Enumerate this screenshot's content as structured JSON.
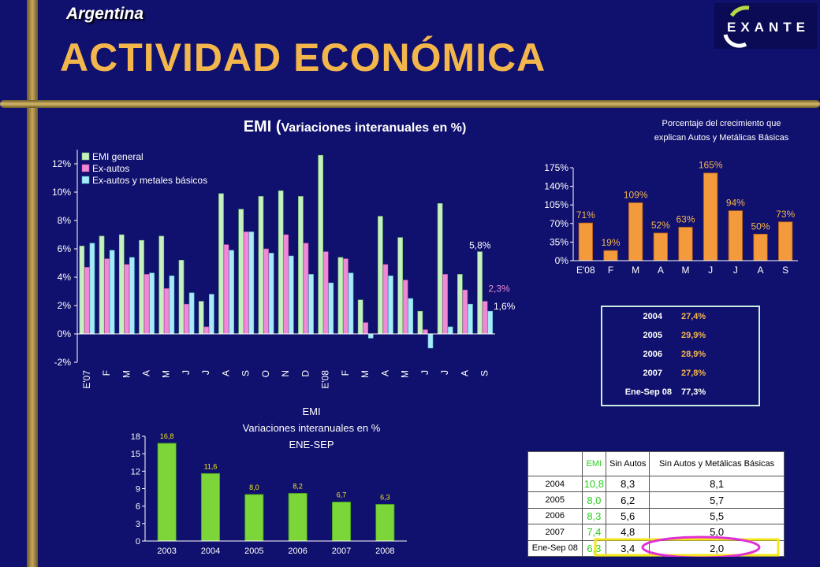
{
  "header": {
    "country": "Argentina",
    "title": "ACTIVIDAD ECONÓMICA",
    "logo_text": "EXANTE"
  },
  "colors": {
    "background": "#10106e",
    "gold": "#c7a55a",
    "title": "#f2b64c",
    "emi_general": "#c7f0c0",
    "ex_autos": "#f08ad8",
    "ex_autos_metales": "#a9eaf7",
    "orange_bar": "#f39a3c",
    "green_bar": "#7cd63a",
    "highlight": "#f4e619",
    "circle": "#e02fd6"
  },
  "emi_title": {
    "main": "EMI (",
    "sub": "Variaciones interanuales en %)"
  },
  "pct_title": {
    "line1": "Porcentaje del crecimiento que",
    "line2": "explican Autos y Metálicas Básicas"
  },
  "bottom_title": {
    "line1": "EMI",
    "line2": "Variaciones interanuales en %",
    "line3": "ENE-SEP"
  },
  "years_box": [
    {
      "year": "2004",
      "value": "27,4%"
    },
    {
      "year": "2005",
      "value": "29,9%"
    },
    {
      "year": "2006",
      "value": "28,9%"
    },
    {
      "year": "2007",
      "value": "27,8%"
    },
    {
      "year": "Ene-Sep 08",
      "value": "77,3%"
    }
  ],
  "emi_table": {
    "headers": [
      "EMI",
      "Sin Autos",
      "Sin Autos y Metálicas Básicas"
    ],
    "rows": [
      {
        "label": "2004",
        "emi": "10,8",
        "sin_autos": "8,3",
        "sin_autos_met": "8,1"
      },
      {
        "label": "2005",
        "emi": "8,0",
        "sin_autos": "6,2",
        "sin_autos_met": "5,7"
      },
      {
        "label": "2006",
        "emi": "8,3",
        "sin_autos": "5,6",
        "sin_autos_met": "5,5"
      },
      {
        "label": "2007",
        "emi": "7,4",
        "sin_autos": "4,8",
        "sin_autos_met": "5,0"
      },
      {
        "label": "Ene-Sep 08",
        "emi": "6,3",
        "sin_autos": "3,4",
        "sin_autos_met": "2,0"
      }
    ]
  },
  "chart_data": [
    {
      "type": "bar",
      "categories": [
        "E'07",
        "F",
        "M",
        "A",
        "M",
        "J",
        "J",
        "A",
        "S",
        "O",
        "N",
        "D",
        "E'08",
        "F",
        "M",
        "A",
        "M",
        "J",
        "J",
        "A",
        "S"
      ],
      "series": [
        {
          "name": "EMI general",
          "values": [
            6.2,
            6.9,
            7.0,
            6.6,
            6.9,
            5.2,
            2.3,
            9.9,
            8.8,
            9.7,
            10.1,
            9.7,
            12.6,
            5.4,
            2.4,
            8.3,
            6.8,
            1.6,
            9.2,
            4.2,
            5.8
          ]
        },
        {
          "name": "Ex-autos",
          "values": [
            4.7,
            5.3,
            4.9,
            4.2,
            3.2,
            2.1,
            0.5,
            6.3,
            7.2,
            6.0,
            7.0,
            6.4,
            5.8,
            5.3,
            0.8,
            4.9,
            3.8,
            0.3,
            4.2,
            3.1,
            2.3
          ]
        },
        {
          "name": "Ex-autos y metales básicos",
          "values": [
            6.4,
            5.9,
            5.4,
            4.3,
            4.1,
            2.9,
            2.8,
            5.9,
            7.2,
            5.7,
            5.5,
            4.2,
            3.6,
            4.3,
            -0.3,
            4.1,
            2.5,
            -1.0,
            0.5,
            2.1,
            1.6
          ]
        }
      ],
      "yticks": [
        "-2%",
        "0%",
        "2%",
        "4%",
        "6%",
        "8%",
        "10%",
        "12%"
      ],
      "ylim": [
        -2,
        13
      ],
      "annotations": [
        "5,8%",
        "2,3%",
        "1,6%"
      ],
      "legend_position": "top-left"
    },
    {
      "type": "bar",
      "categories": [
        "E'08",
        "F",
        "M",
        "A",
        "M",
        "J",
        "J",
        "A",
        "S"
      ],
      "values": [
        71,
        19,
        109,
        52,
        63,
        165,
        94,
        50,
        73
      ],
      "labels": [
        "71%",
        "19%",
        "109%",
        "52%",
        "63%",
        "165%",
        "94%",
        "50%",
        "73%"
      ],
      "yticks": [
        "0%",
        "35%",
        "70%",
        "105%",
        "140%",
        "175%"
      ],
      "ylim": [
        0,
        175
      ]
    },
    {
      "type": "bar",
      "categories": [
        "2003",
        "2004",
        "2005",
        "2006",
        "2007",
        "2008"
      ],
      "values": [
        16.8,
        11.6,
        8.0,
        8.2,
        6.7,
        6.3
      ],
      "labels": [
        "16,8",
        "11,6",
        "8,0",
        "8,2",
        "6,7",
        "6,3"
      ],
      "yticks": [
        "0",
        "3",
        "6",
        "9",
        "12",
        "15",
        "18"
      ],
      "ylim": [
        0,
        18
      ]
    }
  ]
}
